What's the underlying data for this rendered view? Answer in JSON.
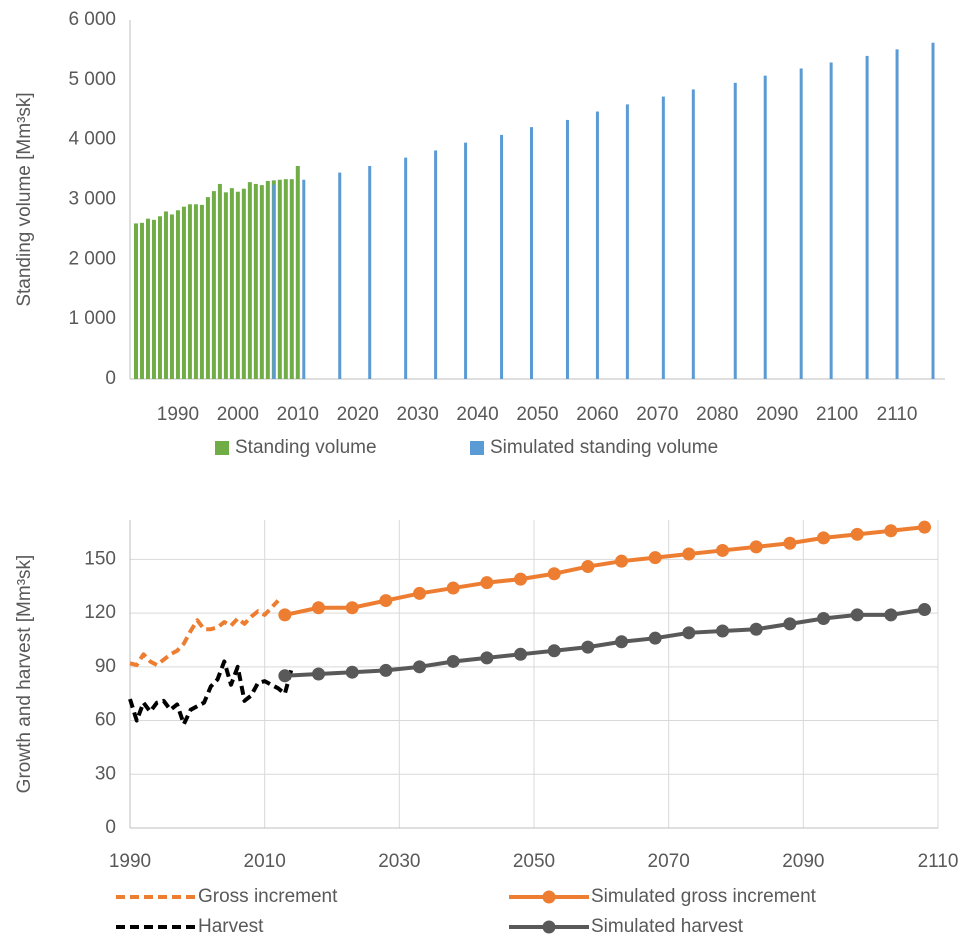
{
  "chart_data": [
    {
      "type": "bar",
      "y_label": "Standing volume [Mm³sk]",
      "xlim": [
        1982,
        2118
      ],
      "xticks": [
        1990,
        2000,
        2010,
        2020,
        2030,
        2040,
        2050,
        2060,
        2070,
        2080,
        2090,
        2100,
        2110
      ],
      "ylim": [
        0,
        6000
      ],
      "yticks": [
        {
          "value": 0,
          "label": "0"
        },
        {
          "value": 1000,
          "label": "1 000"
        },
        {
          "value": 2000,
          "label": "2 000"
        },
        {
          "value": 3000,
          "label": "3 000"
        },
        {
          "value": 4000,
          "label": "4 000"
        },
        {
          "value": 5000,
          "label": "5 000"
        },
        {
          "value": 6000,
          "label": "6 000"
        }
      ],
      "grid": false,
      "series": [
        {
          "name": "Standing volume",
          "color": "#70ad47",
          "x": [
            1983,
            1984,
            1985,
            1986,
            1987,
            1988,
            1989,
            1990,
            1991,
            1992,
            1993,
            1994,
            1995,
            1996,
            1997,
            1998,
            1999,
            2000,
            2001,
            2002,
            2003,
            2004,
            2005,
            2006,
            2007,
            2008,
            2009,
            2010
          ],
          "values": [
            2600,
            2610,
            2680,
            2660,
            2720,
            2800,
            2750,
            2820,
            2880,
            2920,
            2920,
            2910,
            3040,
            3140,
            3260,
            3120,
            3190,
            3130,
            3180,
            3290,
            3260,
            3240,
            3310,
            3320,
            3330,
            3340,
            3340,
            3560
          ]
        },
        {
          "name": "Simulated standing volume",
          "color": "#5b9bd5",
          "x": [
            2006,
            2011,
            2017,
            2022,
            2028,
            2033,
            2038,
            2044,
            2049,
            2055,
            2060,
            2065,
            2071,
            2076,
            2083,
            2088,
            2094,
            2099,
            2105,
            2110,
            2116
          ],
          "values": [
            3250,
            3330,
            3450,
            3560,
            3700,
            3820,
            3950,
            4080,
            4210,
            4330,
            4470,
            4590,
            4720,
            4840,
            4950,
            5070,
            5190,
            5290,
            5400,
            5510,
            5620
          ]
        }
      ]
    },
    {
      "type": "line",
      "y_label": "Growth and harvest [Mm³sk]",
      "xlim": [
        1990,
        2110
      ],
      "xticks": [
        1990,
        2010,
        2030,
        2050,
        2070,
        2090,
        2110
      ],
      "ylim": [
        0,
        172
      ],
      "yticks": [
        0,
        30,
        60,
        90,
        120,
        150
      ],
      "grid": true,
      "series": [
        {
          "name": "Gross increment",
          "color": "#ed7d31",
          "dashed": true,
          "marker": false,
          "x": [
            1990,
            1991,
            1992,
            1993,
            1994,
            1995,
            1996,
            1997,
            1998,
            1999,
            2000,
            2001,
            2002,
            2003,
            2004,
            2005,
            2006,
            2007,
            2008,
            2009,
            2010,
            2011,
            2012
          ],
          "values": [
            92,
            91,
            97,
            93,
            91,
            94,
            97,
            99,
            103,
            110,
            116,
            111,
            111,
            112,
            115,
            113,
            117,
            114,
            118,
            121,
            119,
            123,
            127
          ]
        },
        {
          "name": "Simulated gross increment",
          "color": "#ed7d31",
          "dashed": false,
          "marker": true,
          "x": [
            2013,
            2018,
            2023,
            2028,
            2033,
            2038,
            2043,
            2048,
            2053,
            2058,
            2063,
            2068,
            2073,
            2078,
            2083,
            2088,
            2093,
            2098,
            2103,
            2108
          ],
          "values": [
            119,
            123,
            123,
            127,
            131,
            134,
            137,
            139,
            142,
            146,
            149,
            151,
            153,
            155,
            157,
            159,
            162,
            164,
            166,
            168
          ]
        },
        {
          "name": "Harvest",
          "color": "#000000",
          "dashed": true,
          "marker": false,
          "x": [
            1990,
            1991,
            1992,
            1993,
            1994,
            1995,
            1996,
            1997,
            1998,
            1999,
            2000,
            2001,
            2002,
            2003,
            2004,
            2005,
            2006,
            2007,
            2008,
            2009,
            2010,
            2011,
            2012,
            2013,
            2014
          ],
          "values": [
            72,
            60,
            70,
            65,
            70,
            71,
            66,
            69,
            58,
            66,
            68,
            70,
            79,
            83,
            93,
            80,
            90,
            71,
            74,
            81,
            82,
            80,
            78,
            75,
            89
          ]
        },
        {
          "name": "Simulated harvest",
          "color": "#595959",
          "dashed": false,
          "marker": true,
          "x": [
            2013,
            2018,
            2023,
            2028,
            2033,
            2038,
            2043,
            2048,
            2053,
            2058,
            2063,
            2068,
            2073,
            2078,
            2083,
            2088,
            2093,
            2098,
            2103,
            2108
          ],
          "values": [
            85,
            86,
            87,
            88,
            90,
            93,
            95,
            97,
            99,
            101,
            104,
            106,
            109,
            110,
            111,
            114,
            117,
            119,
            119,
            122
          ]
        }
      ]
    }
  ]
}
